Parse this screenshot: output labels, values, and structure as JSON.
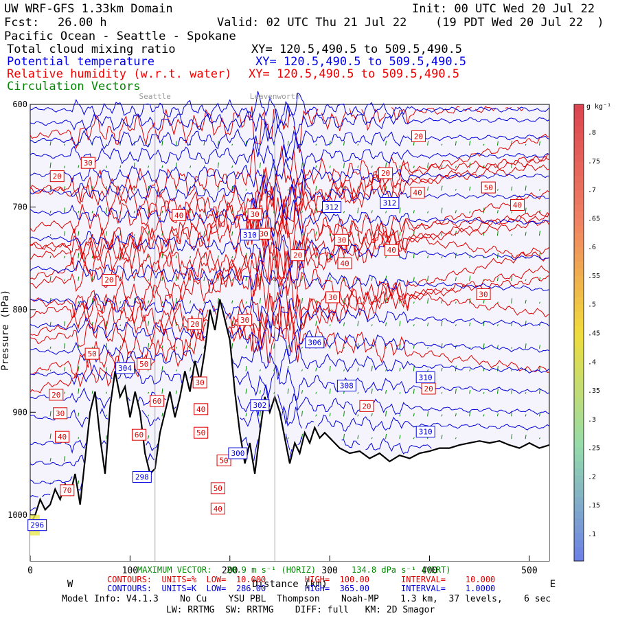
{
  "header": {
    "title": "UW WRF-GFS 1.33km Domain",
    "init": "Init: 00 UTC Wed 20 Jul 22",
    "fcst_label": "Fcst:",
    "fcst_value": "26.00 h",
    "valid": "Valid: 02 UTC Thu 21 Jul 22",
    "valid_local": "(19 PDT Wed 20 Jul 22  )",
    "region": "Pacific Ocean - Seattle - Spokane"
  },
  "fields": [
    {
      "name": "Total cloud mixing ratio",
      "xy": "XY= 120.5,490.5 to 509.5,490.5",
      "color": "#000000"
    },
    {
      "name": "Potential temperature",
      "xy": "XY= 120.5,490.5 to 509.5,490.5",
      "color": "#0000ee"
    },
    {
      "name": "Relative humidity (w.r.t. water)",
      "xy": "XY= 120.5,490.5 to 509.5,490.5",
      "color": "#ee0000"
    },
    {
      "name": "Circulation Vectors",
      "xy": "",
      "color": "#008800"
    }
  ],
  "places": [
    {
      "name": "Seattle",
      "x_km": 125
    },
    {
      "name": "Leavenworth",
      "x_km": 245
    }
  ],
  "chart_data": {
    "type": "cross-section",
    "x_range": [
      0,
      520
    ],
    "y_range": [
      1045,
      600
    ],
    "x_ticks": [
      0,
      100,
      200,
      300,
      400,
      500
    ],
    "y_ticks": [
      600,
      700,
      800,
      900,
      1000
    ],
    "y_tick_labels": [
      "600",
      "700",
      "800",
      "900",
      "1000"
    ],
    "xlabel": "Distance (km)",
    "ylabel": "Pressure (hPa)",
    "west_label": "W",
    "east_label": "E",
    "terrain": [
      [
        0,
        1010
      ],
      [
        5,
        1000
      ],
      [
        10,
        985
      ],
      [
        15,
        995
      ],
      [
        20,
        990
      ],
      [
        25,
        975
      ],
      [
        30,
        985
      ],
      [
        35,
        970
      ],
      [
        40,
        980
      ],
      [
        45,
        960
      ],
      [
        50,
        990
      ],
      [
        55,
        945
      ],
      [
        60,
        900
      ],
      [
        65,
        880
      ],
      [
        70,
        925
      ],
      [
        75,
        960
      ],
      [
        80,
        895
      ],
      [
        85,
        860
      ],
      [
        90,
        885
      ],
      [
        95,
        875
      ],
      [
        100,
        905
      ],
      [
        105,
        880
      ],
      [
        110,
        900
      ],
      [
        115,
        940
      ],
      [
        120,
        960
      ],
      [
        125,
        955
      ],
      [
        130,
        920
      ],
      [
        135,
        900
      ],
      [
        140,
        880
      ],
      [
        145,
        905
      ],
      [
        150,
        885
      ],
      [
        155,
        860
      ],
      [
        160,
        880
      ],
      [
        165,
        850
      ],
      [
        170,
        870
      ],
      [
        175,
        840
      ],
      [
        180,
        800
      ],
      [
        185,
        820
      ],
      [
        190,
        790
      ],
      [
        195,
        810
      ],
      [
        200,
        830
      ],
      [
        205,
        880
      ],
      [
        210,
        920
      ],
      [
        215,
        950
      ],
      [
        220,
        930
      ],
      [
        225,
        960
      ],
      [
        230,
        920
      ],
      [
        235,
        885
      ],
      [
        240,
        900
      ],
      [
        245,
        885
      ],
      [
        250,
        900
      ],
      [
        255,
        925
      ],
      [
        260,
        950
      ],
      [
        265,
        930
      ],
      [
        270,
        940
      ],
      [
        275,
        920
      ],
      [
        280,
        930
      ],
      [
        285,
        915
      ],
      [
        290,
        925
      ],
      [
        295,
        920
      ],
      [
        300,
        925
      ],
      [
        305,
        930
      ],
      [
        310,
        935
      ],
      [
        320,
        940
      ],
      [
        330,
        938
      ],
      [
        340,
        945
      ],
      [
        350,
        940
      ],
      [
        360,
        948
      ],
      [
        370,
        942
      ],
      [
        380,
        945
      ],
      [
        390,
        940
      ],
      [
        400,
        938
      ],
      [
        410,
        935
      ],
      [
        420,
        935
      ],
      [
        430,
        932
      ],
      [
        440,
        930
      ],
      [
        450,
        928
      ],
      [
        460,
        930
      ],
      [
        470,
        928
      ],
      [
        480,
        932
      ],
      [
        490,
        935
      ],
      [
        500,
        930
      ],
      [
        510,
        935
      ],
      [
        520,
        932
      ]
    ],
    "theta_contours": [
      {
        "theta": 286,
        "p_west": 1008,
        "p_east": 1008
      },
      {
        "theta": 288,
        "p_west": 995,
        "p_east": 995
      },
      {
        "theta": 290,
        "p_west": 982,
        "p_east": 982
      },
      {
        "theta": 292,
        "p_west": 968,
        "p_east": 968
      },
      {
        "theta": 294,
        "p_west": 950,
        "p_east": 950
      },
      {
        "theta": 296,
        "p_west": 930,
        "p_east": 935
      },
      {
        "theta": 298,
        "p_west": 905,
        "p_east": 915
      },
      {
        "theta": 300,
        "p_west": 885,
        "p_east": 900
      },
      {
        "theta": 302,
        "p_west": 862,
        "p_east": 880
      },
      {
        "theta": 304,
        "p_west": 840,
        "p_east": 860
      },
      {
        "theta": 306,
        "p_west": 815,
        "p_east": 840
      },
      {
        "theta": 308,
        "p_west": 790,
        "p_east": 815
      },
      {
        "theta": 310,
        "p_west": 760,
        "p_east": 780
      },
      {
        "theta": 312,
        "p_west": 730,
        "p_east": 750
      },
      {
        "theta": 314,
        "p_west": 705,
        "p_east": 715
      },
      {
        "theta": 316,
        "p_west": 685,
        "p_east": 690
      },
      {
        "theta": 318,
        "p_west": 668,
        "p_east": 670
      },
      {
        "theta": 320,
        "p_west": 650,
        "p_east": 650
      },
      {
        "theta": 322,
        "p_west": 635,
        "p_east": 632
      },
      {
        "theta": 324,
        "p_west": 618,
        "p_east": 615
      },
      {
        "theta": 326,
        "p_west": 605,
        "p_east": 605
      }
    ],
    "rh_contours": [
      {
        "rh": 20,
        "p_west": 670,
        "p_east": 640
      },
      {
        "rh": 30,
        "p_west": 720,
        "p_east": 790
      },
      {
        "rh": 40,
        "p_west": 760,
        "p_east": 700
      },
      {
        "rh": 50,
        "p_west": 790,
        "p_east": 690
      },
      {
        "rh": 60,
        "p_west": 810,
        "p_east": 670
      }
    ],
    "theta_labels": [
      {
        "text": "296",
        "x": 7,
        "p": 1010
      },
      {
        "text": "298",
        "x": 112,
        "p": 963
      },
      {
        "text": "300",
        "x": 208,
        "p": 940
      },
      {
        "text": "302",
        "x": 230,
        "p": 893
      },
      {
        "text": "304",
        "x": 95,
        "p": 857
      },
      {
        "text": "306",
        "x": 285,
        "p": 832
      },
      {
        "text": "308",
        "x": 317,
        "p": 874
      },
      {
        "text": "310",
        "x": 220,
        "p": 727
      },
      {
        "text": "310",
        "x": 396,
        "p": 866
      },
      {
        "text": "310",
        "x": 396,
        "p": 919
      },
      {
        "text": "312",
        "x": 302,
        "p": 700
      },
      {
        "text": "312",
        "x": 360,
        "p": 696
      }
    ],
    "rh_labels": [
      {
        "text": "20",
        "x": 27,
        "p": 670
      },
      {
        "text": "30",
        "x": 58,
        "p": 657
      },
      {
        "text": "40",
        "x": 149,
        "p": 708
      },
      {
        "text": "50",
        "x": 459,
        "p": 681
      },
      {
        "text": "40",
        "x": 488,
        "p": 698
      },
      {
        "text": "20",
        "x": 389,
        "p": 631
      },
      {
        "text": "20",
        "x": 356,
        "p": 667
      },
      {
        "text": "40",
        "x": 388,
        "p": 686
      },
      {
        "text": "30",
        "x": 225,
        "p": 707
      },
      {
        "text": "30",
        "x": 234,
        "p": 726
      },
      {
        "text": "30",
        "x": 312,
        "p": 732
      },
      {
        "text": "30",
        "x": 303,
        "p": 788
      },
      {
        "text": "40",
        "x": 362,
        "p": 742
      },
      {
        "text": "40",
        "x": 315,
        "p": 755
      },
      {
        "text": "20",
        "x": 268,
        "p": 747
      },
      {
        "text": "20",
        "x": 79,
        "p": 771
      },
      {
        "text": "30",
        "x": 454,
        "p": 785
      },
      {
        "text": "20",
        "x": 165,
        "p": 814
      },
      {
        "text": "30",
        "x": 215,
        "p": 810
      },
      {
        "text": "50",
        "x": 62,
        "p": 843
      },
      {
        "text": "50",
        "x": 114,
        "p": 853
      },
      {
        "text": "30",
        "x": 170,
        "p": 871
      },
      {
        "text": "20",
        "x": 26,
        "p": 883
      },
      {
        "text": "20",
        "x": 399,
        "p": 877
      },
      {
        "text": "30",
        "x": 30,
        "p": 901
      },
      {
        "text": "40",
        "x": 32,
        "p": 924
      },
      {
        "text": "60",
        "x": 127,
        "p": 889
      },
      {
        "text": "40",
        "x": 171,
        "p": 897
      },
      {
        "text": "60",
        "x": 109,
        "p": 922
      },
      {
        "text": "50",
        "x": 171,
        "p": 920
      },
      {
        "text": "50",
        "x": 194,
        "p": 947
      },
      {
        "text": "70",
        "x": 37,
        "p": 976
      },
      {
        "text": "50",
        "x": 188,
        "p": 974
      },
      {
        "text": "40",
        "x": 188,
        "p": 994
      },
      {
        "text": "20",
        "x": 337,
        "p": 894
      }
    ],
    "colorbar": {
      "unit": "g kg⁻¹",
      "levels": [
        ".1",
        ".15",
        ".2",
        ".25",
        ".3",
        ".35",
        ".4",
        ".45",
        ".5",
        ".55",
        ".6",
        ".65",
        ".7",
        ".75",
        ".8"
      ]
    }
  },
  "footer": {
    "max_vector_label": "MAXIMUM VECTOR: ",
    "max_vector_value": "20.9 m s⁻¹ (HORIZ)",
    "max_vector_vert": "134.8 dPa s⁻¹ (VERT)",
    "red_contours": "CONTOURS:  UNITS=%  LOW=  10.000",
    "red_high": "HIGH=  100.00",
    "red_interval": "INTERVAL=    10.000",
    "blue_contours": "CONTOURS:  UNITS=K  LOW=  286.00",
    "blue_high": "HIGH=  365.00",
    "blue_interval": "INTERVAL=    1.0000",
    "model_info": "Model Info: V4.1.3    No Cu    YSU PBL  Thompson    Noah-MP    1.3 km,  37 levels,    6 sec",
    "model_info2": "LW: RRTMG  SW: RRTMG    DIFF: full   KM: 2D Smagor"
  },
  "colors": {
    "theta": "#0000dd",
    "rh": "#dd0000",
    "vectors": "#008800",
    "plot_bg": "#f5f3fb",
    "terrain": "#000000"
  }
}
